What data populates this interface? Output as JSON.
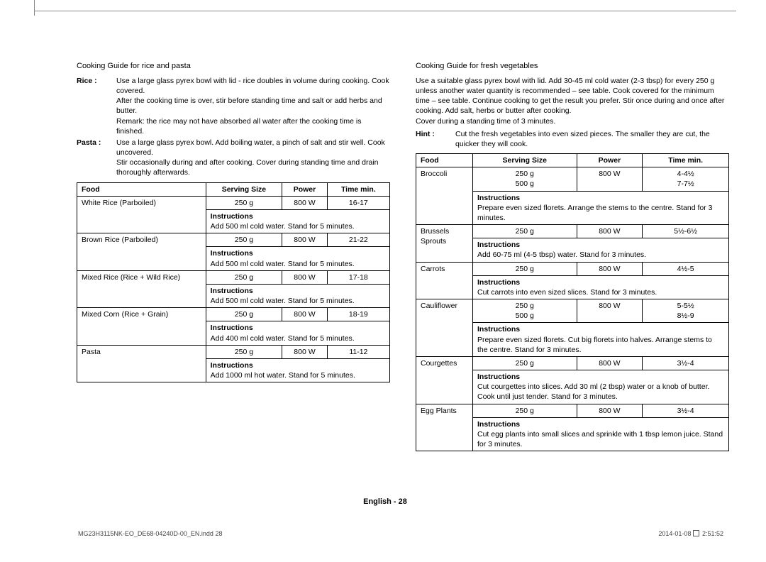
{
  "left": {
    "title": "Cooking Guide for rice and pasta",
    "rice_label": "Rice :",
    "rice_text": "Use a large glass pyrex bowl with lid - rice doubles in volume during cooking. Cook covered.\nAfter the cooking time is over, stir before standing time and salt or add herbs and butter.\nRemark: the rice may not have absorbed all water after the cooking time is finished.",
    "pasta_label": "Pasta :",
    "pasta_text": "Use a large glass pyrex bowl. Add boiling water, a pinch of salt and stir well. Cook uncovered.\nStir occasionally during and after cooking. Cover during standing time and drain thoroughly afterwards.",
    "headers": [
      "Food",
      "Serving Size",
      "Power",
      "Time min."
    ],
    "rows": [
      {
        "food": "White Rice (Parboiled)",
        "size": "250 g",
        "power": "800 W",
        "time": "16-17",
        "instr": "Add 500 ml cold water. Stand for 5 minutes."
      },
      {
        "food": "Brown Rice (Parboiled)",
        "size": "250 g",
        "power": "800 W",
        "time": "21-22",
        "instr": "Add 500 ml cold water. Stand for 5 minutes."
      },
      {
        "food": "Mixed Rice (Rice + Wild Rice)",
        "size": "250 g",
        "power": "800 W",
        "time": "17-18",
        "instr": "Add 500 ml cold water. Stand for 5 minutes."
      },
      {
        "food": "Mixed Corn (Rice + Grain)",
        "size": "250 g",
        "power": "800 W",
        "time": "18-19",
        "instr": "Add 400 ml cold water. Stand for 5 minutes."
      },
      {
        "food": "Pasta",
        "size": "250 g",
        "power": "800 W",
        "time": "11-12",
        "instr": "Add 1000 ml hot water. Stand for 5 minutes."
      }
    ],
    "instr_label": "Instructions"
  },
  "right": {
    "title": "Cooking Guide for fresh vegetables",
    "intro": "Use a suitable glass pyrex bowl with lid. Add 30-45 ml cold water (2-3 tbsp) for every 250 g unless another water quantity is recommended – see table. Cook covered for the minimum time – see table. Continue cooking to get the result you prefer. Stir once during and once after cooking. Add salt, herbs or butter after cooking.\nCover during a standing time of 3 minutes.",
    "hint_label": "Hint :",
    "hint_text": "Cut the fresh vegetables into even sized pieces. The smaller they are cut, the quicker they will cook.",
    "headers": [
      "Food",
      "Serving Size",
      "Power",
      "Time min."
    ],
    "rows": [
      {
        "food": "Broccoli",
        "size": "250 g\n500 g",
        "power": "800 W",
        "time": "4-4½\n7-7½",
        "instr": "Prepare even sized florets. Arrange the stems to the centre. Stand for 3 minutes."
      },
      {
        "food": "Brussels Sprouts",
        "size": "250 g",
        "power": "800 W",
        "time": "5½-6½",
        "instr": "Add 60-75 ml (4-5 tbsp) water. Stand for 3 minutes."
      },
      {
        "food": "Carrots",
        "size": "250 g",
        "power": "800 W",
        "time": "4½-5",
        "instr": "Cut carrots into even sized slices. Stand for 3 minutes."
      },
      {
        "food": "Cauliflower",
        "size": "250 g\n500 g",
        "power": "800 W",
        "time": "5-5½\n8½-9",
        "instr": "Prepare even sized florets. Cut big florets into halves. Arrange stems to the centre. Stand for 3 minutes."
      },
      {
        "food": "Courgettes",
        "size": "250 g",
        "power": "800 W",
        "time": "3½-4",
        "instr": "Cut courgettes into slices. Add 30 ml (2 tbsp) water or a knob of butter. Cook until just tender. Stand for 3 minutes."
      },
      {
        "food": "Egg Plants",
        "size": "250 g",
        "power": "800 W",
        "time": "3½-4",
        "instr": "Cut egg plants into small slices and sprinkle with 1 tbsp lemon juice. Stand for 3 minutes."
      }
    ],
    "instr_label": "Instructions"
  },
  "footer": {
    "center": "English - 28",
    "left": "MG23H3115NK-EO_DE68-04240D-00_EN.indd   28",
    "right_date": "2014-01-08",
    "right_time": "2:51:52"
  }
}
